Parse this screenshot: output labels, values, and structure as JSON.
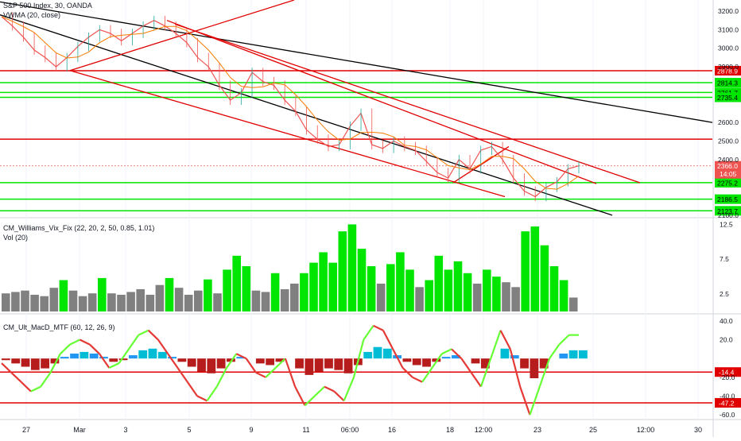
{
  "header": {
    "title": "S&P 500 Index, 30, OANDA",
    "vwma_label": "VWMA (20, close)",
    "vix_label": "CM_Williams_Vix_Fix (22, 20, 2, 50, 0.85, 1.01)",
    "vol_label": "Vol (20)",
    "macd_label": "CM_Ult_MacD_MTF (60, 12, 26, 9)"
  },
  "colors": {
    "green_line": "#00e600",
    "red_line": "#e00000",
    "trend_black": "#000000",
    "candle_up": "#26a69a",
    "candle_down": "#ef5350",
    "vwma": "#f57c00",
    "vix_gray": "#808080",
    "vix_green": "#00e600",
    "macd_up": "#2196f3",
    "macd_up_strong": "#00bcd4",
    "macd_down": "#b71c1c",
    "macd_line_green": "#66ff33",
    "macd_line_red": "#e53935",
    "last_price_box": "#ef5350"
  },
  "chart_data": [
    {
      "type": "candlestick",
      "title": "S&P 500 Index, 30, OANDA",
      "ylim": [
        2095,
        3260
      ],
      "y_ticks": [
        "3200.0",
        "3100.0",
        "3000.0",
        "2900.0",
        "2600.0",
        "2500.0",
        "2400.0",
        "2100.0"
      ],
      "x_ticks": [
        "27",
        "Mar",
        "3",
        "5",
        "9",
        "11",
        "06:00",
        "16",
        "18",
        "12:00",
        "23",
        "25",
        "12:00",
        "30"
      ],
      "horizontal_levels": [
        {
          "value": 2878.9,
          "label": "2878.9",
          "color": "red"
        },
        {
          "value": 2814.3,
          "label": "2814.3",
          "color": "green"
        },
        {
          "value": 2761.7,
          "label": "2761.7",
          "color": "green"
        },
        {
          "value": 2735.4,
          "label": "2735.4",
          "color": "green"
        },
        {
          "value": 2510.0,
          "label": "",
          "color": "red"
        },
        {
          "value": 2275.2,
          "label": "2275.2",
          "color": "green"
        },
        {
          "value": 2186.5,
          "label": "2186.5",
          "color": "green"
        },
        {
          "value": 2123.7,
          "label": "2123.7",
          "color": "green"
        }
      ],
      "last_price": {
        "value": 2366.0,
        "label": "2366.0",
        "countdown": "14:05"
      },
      "price_path": [
        3170,
        3120,
        3060,
        2990,
        2950,
        2900,
        2950,
        3010,
        3060,
        3100,
        3080,
        3040,
        3080,
        3120,
        3150,
        3120,
        3080,
        3030,
        2950,
        2900,
        2800,
        2720,
        2760,
        2870,
        2820,
        2800,
        2720,
        2660,
        2560,
        2510,
        2470,
        2480,
        2580,
        2650,
        2480,
        2460,
        2500,
        2470,
        2450,
        2390,
        2330,
        2300,
        2400,
        2350,
        2450,
        2470,
        2400,
        2300,
        2230,
        2200,
        2250,
        2280,
        2350,
        2366
      ]
    },
    {
      "type": "bar",
      "title": "CM_Williams_Vix_Fix (22, 20, 2, 50, 0.85, 1.01)",
      "ylim": [
        0,
        13
      ],
      "y_ticks": [
        "12.5",
        "7.5",
        "2.5"
      ],
      "values": [
        2.6,
        2.8,
        3.0,
        2.4,
        2.2,
        3.4,
        4.5,
        3.0,
        2.2,
        2.6,
        4.8,
        2.6,
        2.4,
        2.8,
        3.2,
        2.4,
        3.8,
        4.8,
        3.4,
        2.4,
        3.0,
        4.6,
        2.6,
        6.0,
        8.0,
        6.5,
        3.0,
        2.8,
        5.5,
        3.2,
        4.0,
        5.5,
        7.0,
        8.5,
        7.0,
        11.5,
        12.5,
        9.0,
        6.5,
        4.0,
        6.8,
        8.5,
        6.0,
        3.5,
        4.5,
        8.0,
        6.0,
        7.2,
        5.5,
        4.0,
        6.0,
        5.0,
        4.2,
        3.5,
        11.5,
        12.2,
        9.5,
        6.5,
        4.5,
        2.0
      ]
    },
    {
      "type": "bar",
      "title": "CM_Ult_MacD_MTF (60, 12, 26, 9)",
      "ylim": [
        -65,
        45
      ],
      "y_ticks": [
        "40.0",
        "20.0",
        "-20.0",
        "-40.0",
        "-60.0"
      ],
      "horizontal_levels": [
        {
          "value": -14.4,
          "label": "-14.4"
        },
        {
          "value": -47.2,
          "label": "-47.2"
        }
      ],
      "macd_line": [
        -5,
        -15,
        -25,
        -35,
        -30,
        -15,
        5,
        15,
        20,
        15,
        5,
        -10,
        -5,
        10,
        25,
        30,
        20,
        5,
        -10,
        -25,
        -40,
        -45,
        -30,
        -10,
        5,
        0,
        -15,
        -20,
        -10,
        0,
        -30,
        -50,
        -40,
        -30,
        -35,
        -45,
        -20,
        20,
        35,
        30,
        10,
        -10,
        -20,
        -25,
        -10,
        5,
        10,
        0,
        -15,
        -30,
        0,
        30,
        10,
        -30,
        -60,
        -30,
        0,
        15,
        25,
        25
      ]
    }
  ]
}
